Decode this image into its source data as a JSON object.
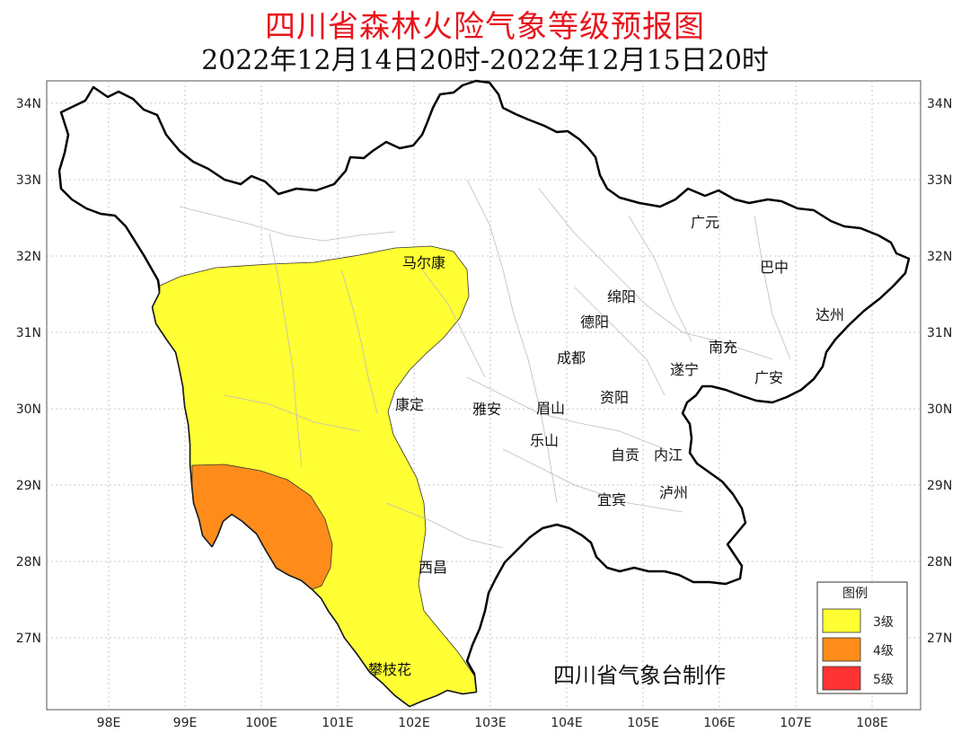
{
  "title": "四川省森林火险气象等级预报图",
  "subtitle": "2022年12月14日20时-2022年12月15日20时",
  "credit": "四川省气象台制作",
  "axes": {
    "lon_ticks": [
      "98E",
      "99E",
      "100E",
      "101E",
      "102E",
      "103E",
      "104E",
      "105E",
      "106E",
      "107E",
      "108E"
    ],
    "lat_ticks": [
      "34N",
      "33N",
      "32N",
      "31N",
      "30N",
      "29N",
      "28N",
      "27N"
    ]
  },
  "cities": [
    {
      "name": "广元"
    },
    {
      "name": "巴中"
    },
    {
      "name": "马尔康"
    },
    {
      "name": "绵阳"
    },
    {
      "name": "达州"
    },
    {
      "name": "德阳"
    },
    {
      "name": "南充"
    },
    {
      "name": "成都"
    },
    {
      "name": "遂宁"
    },
    {
      "name": "广安"
    },
    {
      "name": "康定"
    },
    {
      "name": "雅安"
    },
    {
      "name": "眉山"
    },
    {
      "name": "资阳"
    },
    {
      "name": "乐山"
    },
    {
      "name": "自贡"
    },
    {
      "name": "内江"
    },
    {
      "name": "宜宾"
    },
    {
      "name": "泸州"
    },
    {
      "name": "西昌"
    },
    {
      "name": "攀枝花"
    }
  ],
  "legend": {
    "title": "图例",
    "items": [
      {
        "label": "3级",
        "color": "#ffff33"
      },
      {
        "label": "4级",
        "color": "#ff8c1a"
      },
      {
        "label": "5级",
        "color": "#ff3333"
      }
    ]
  },
  "zones": [
    {
      "level": "3级",
      "color": "#ffff33"
    },
    {
      "level": "4级",
      "color": "#ff8c1a"
    }
  ]
}
